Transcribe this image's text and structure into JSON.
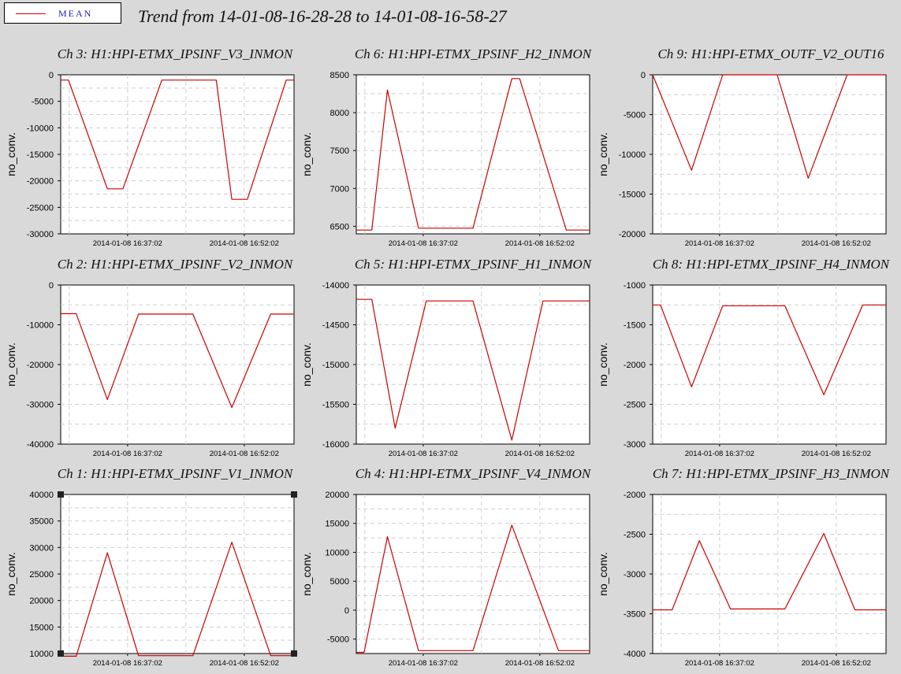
{
  "legend": {
    "label": "MEAN",
    "color": "#cc0000"
  },
  "title": "Trend from 14-01-08-16-28-28 to 14-01-08-16-58-27",
  "x_tick_labels": [
    "2014-01-08 16:37:02",
    "2014-01-08 16:52:02"
  ],
  "x_range_minutes": [
    0,
    30
  ],
  "x_ticks_minutes": [
    8.6,
    23.6
  ],
  "chart_data": [
    {
      "type": "line",
      "title": "Ch 3: H1:HPI-ETMX_IPSINF_V3_INMON",
      "ylabel": "no_conv.",
      "ylim": [
        -30000,
        0
      ],
      "yticks": [
        0,
        -5000,
        -10000,
        -15000,
        -20000,
        -25000,
        -30000
      ],
      "series": [
        {
          "name": "MEAN",
          "x": [
            0,
            1,
            6,
            8,
            13,
            20,
            22,
            24,
            29,
            30
          ],
          "y": [
            -1000,
            -1000,
            -21500,
            -21500,
            -1000,
            -1000,
            -23500,
            -23500,
            -1000,
            -1000
          ]
        }
      ]
    },
    {
      "type": "line",
      "title": "Ch 6: H1:HPI-ETMX_IPSINF_H2_INMON",
      "ylabel": "no_conv.",
      "ylim": [
        6400,
        8500
      ],
      "yticks": [
        8500,
        8000,
        7500,
        7000,
        6500
      ],
      "series": [
        {
          "name": "MEAN",
          "x": [
            0,
            2,
            4,
            8,
            15,
            20,
            21,
            27,
            30
          ],
          "y": [
            6450,
            6450,
            8300,
            6475,
            6475,
            8450,
            8450,
            6450,
            6450
          ]
        }
      ]
    },
    {
      "type": "line",
      "title": "Ch 9: H1:HPI-ETMX_OUTF_V2_OUT16",
      "ylabel": "no_conv.",
      "ylim": [
        -20000,
        0
      ],
      "yticks": [
        0,
        -5000,
        -10000,
        -15000,
        -20000
      ],
      "series": [
        {
          "name": "MEAN",
          "x": [
            0,
            5,
            9,
            16,
            20,
            25,
            30
          ],
          "y": [
            0,
            -12000,
            0,
            0,
            -13000,
            0,
            0
          ]
        }
      ]
    },
    {
      "type": "line",
      "title": "Ch 2: H1:HPI-ETMX_IPSINF_V2_INMON",
      "ylabel": "no_conv.",
      "ylim": [
        -40000,
        0
      ],
      "yticks": [
        0,
        -10000,
        -20000,
        -30000,
        -40000
      ],
      "series": [
        {
          "name": "MEAN",
          "x": [
            0,
            2,
            6,
            10,
            17,
            22,
            27,
            30
          ],
          "y": [
            -7200,
            -7200,
            -28800,
            -7300,
            -7300,
            -30800,
            -7300,
            -7300
          ]
        }
      ]
    },
    {
      "type": "line",
      "title": "Ch 5: H1:HPI-ETMX_IPSINF_H1_INMON",
      "ylabel": "no_conv.",
      "ylim": [
        -16000,
        -14000
      ],
      "yticks": [
        -14000,
        -14500,
        -15000,
        -15500,
        -16000
      ],
      "series": [
        {
          "name": "MEAN",
          "x": [
            0,
            2,
            5,
            9,
            15,
            20,
            24,
            30
          ],
          "y": [
            -14180,
            -14180,
            -15800,
            -14200,
            -14200,
            -15950,
            -14200,
            -14200
          ]
        }
      ]
    },
    {
      "type": "line",
      "title": "Ch 8: H1:HPI-ETMX_IPSINF_H4_INMON",
      "ylabel": "no_conv.",
      "ylim": [
        -3000,
        -1000
      ],
      "yticks": [
        -1000,
        -1500,
        -2000,
        -2500,
        -3000
      ],
      "series": [
        {
          "name": "MEAN",
          "x": [
            0,
            1,
            5,
            9,
            17,
            22,
            27,
            30
          ],
          "y": [
            -1250,
            -1250,
            -2280,
            -1260,
            -1260,
            -2380,
            -1250,
            -1250
          ]
        }
      ]
    },
    {
      "type": "line",
      "title": "Ch 1: H1:HPI-ETMX_IPSINF_V1_INMON",
      "ylabel": "no_conv.",
      "ylim": [
        10000,
        40000
      ],
      "yticks": [
        40000,
        35000,
        30000,
        25000,
        20000,
        15000,
        10000
      ],
      "series": [
        {
          "name": "MEAN",
          "x": [
            0,
            2,
            6,
            10,
            17,
            22,
            27,
            30
          ],
          "y": [
            9500,
            9500,
            29000,
            9600,
            9600,
            31000,
            9600,
            9600
          ]
        }
      ]
    },
    {
      "type": "line",
      "title": "Ch 4: H1:HPI-ETMX_IPSINF_V4_INMON",
      "ylabel": "no_conv.",
      "ylim": [
        -7500,
        20000
      ],
      "yticks": [
        20000,
        15000,
        10000,
        5000,
        0,
        -5000
      ],
      "series": [
        {
          "name": "MEAN",
          "x": [
            0,
            1,
            4,
            8,
            15,
            20,
            26,
            30
          ],
          "y": [
            -7300,
            -7300,
            12700,
            -7000,
            -7000,
            14700,
            -7000,
            -7000
          ]
        }
      ]
    },
    {
      "type": "line",
      "title": "Ch 7: H1:HPI-ETMX_IPSINF_H3_INMON",
      "ylabel": "no_conv.",
      "ylim": [
        -4000,
        -2000
      ],
      "yticks": [
        -2000,
        -2500,
        -3000,
        -3500,
        -4000
      ],
      "series": [
        {
          "name": "MEAN",
          "x": [
            0,
            2.5,
            6,
            10,
            17,
            22,
            26,
            30
          ],
          "y": [
            -3450,
            -3450,
            -2580,
            -3440,
            -3440,
            -2490,
            -3450,
            -3450
          ]
        }
      ]
    }
  ]
}
